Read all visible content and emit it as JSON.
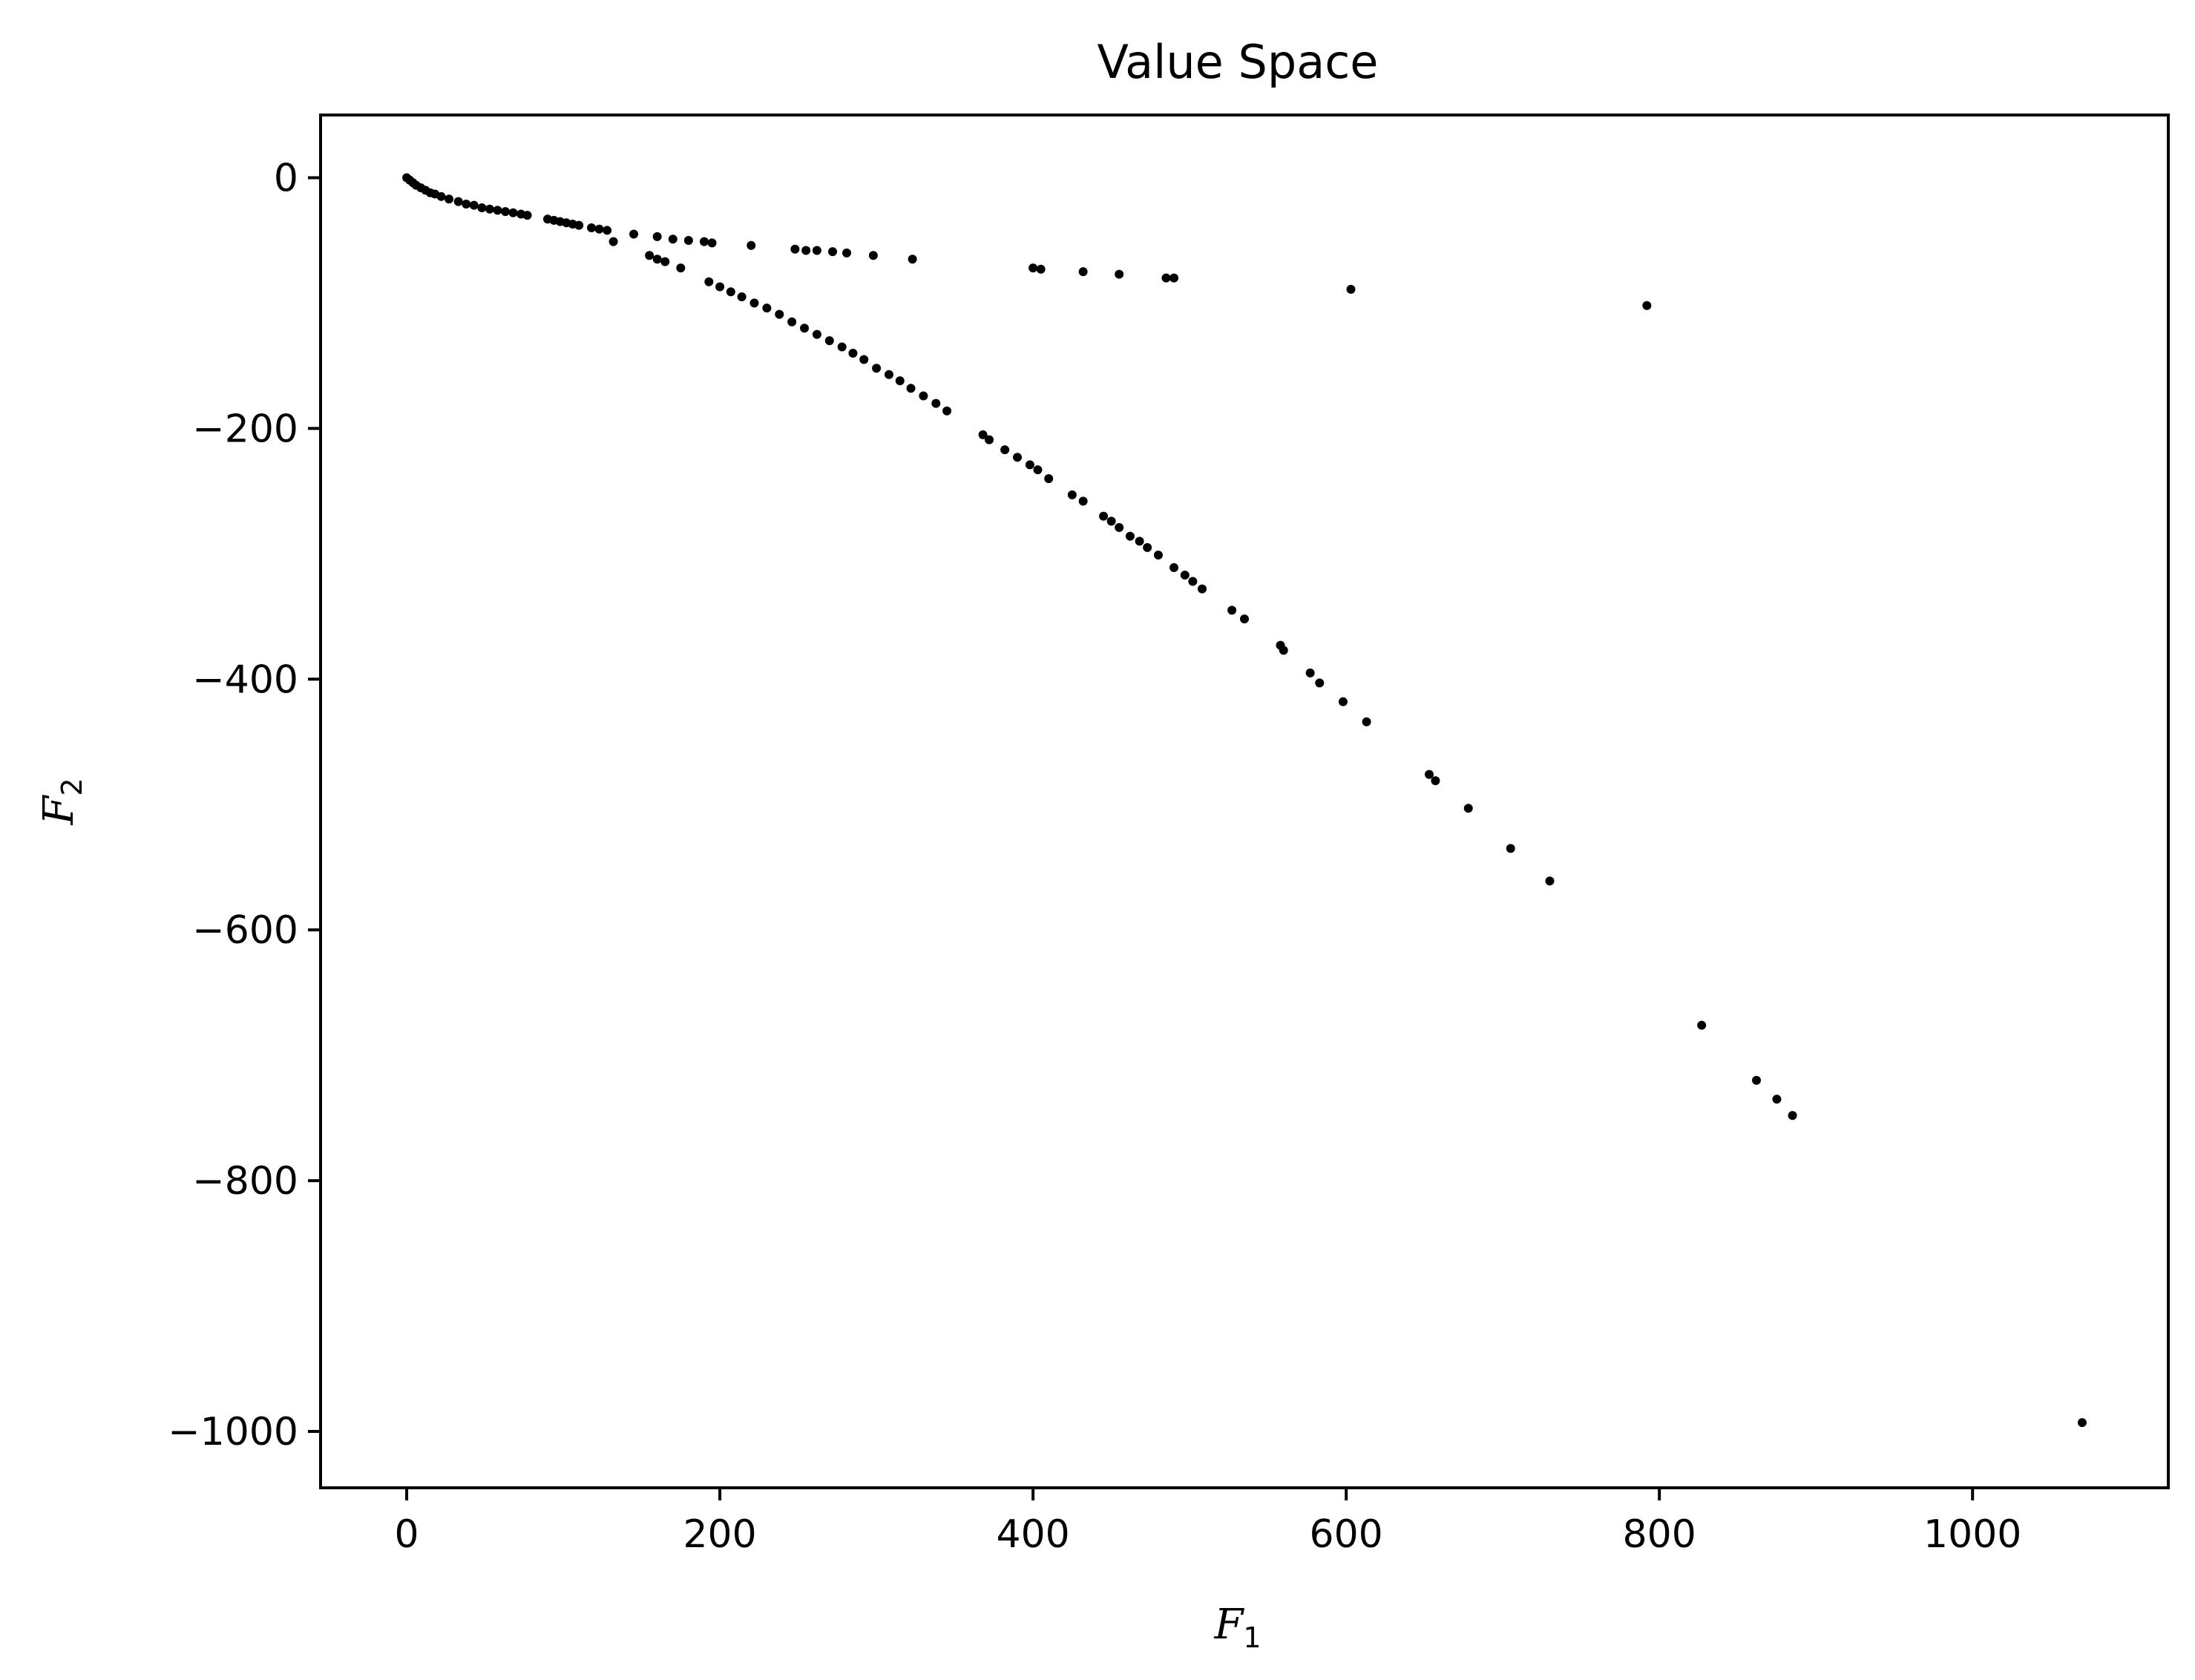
{
  "chart_data": {
    "type": "scatter",
    "title": "Value Space",
    "xlabel": {
      "main": "F",
      "sub": "1"
    },
    "ylabel": {
      "main": "F",
      "sub": "2"
    },
    "xlim": [
      -55,
      1125
    ],
    "ylim": [
      -1045,
      50
    ],
    "xticks": [
      0,
      200,
      400,
      600,
      800,
      1000
    ],
    "yticks": [
      0,
      -200,
      -400,
      -600,
      -800,
      -1000
    ],
    "ytick_labels": [
      "0",
      "−200",
      "−400",
      "−600",
      "−800",
      "−1000"
    ],
    "grid": false,
    "marker_color": "#000000",
    "series": [
      {
        "x": [
          0,
          2,
          4,
          6,
          9,
          12,
          15,
          18,
          22,
          27,
          33,
          38,
          43,
          48,
          53,
          58,
          63,
          68,
          73,
          77,
          90,
          94,
          98,
          102,
          106,
          110,
          118,
          123,
          128,
          132,
          145,
          160,
          170,
          180,
          190,
          195,
          220,
          248,
          255,
          262,
          272,
          281,
          298,
          323,
          400,
          405,
          432,
          455,
          485,
          490,
          603,
          792
        ],
        "y": [
          0,
          -2,
          -4,
          -6,
          -8,
          -10,
          -12,
          -13,
          -15,
          -17,
          -19,
          -21,
          -22,
          -24,
          -25,
          -26,
          -27,
          -28,
          -29,
          -30,
          -33,
          -34,
          -35,
          -36,
          -37,
          -38,
          -40,
          -41,
          -42,
          -51,
          -45,
          -47,
          -49,
          -50,
          -51,
          -52,
          -54,
          -57,
          -58,
          -58,
          -59,
          -60,
          -62,
          -65,
          -72,
          -73,
          -75,
          -77,
          -80,
          -80,
          -89,
          -102
        ]
      },
      {
        "x": [
          155,
          160,
          165,
          175,
          193,
          200,
          207,
          214,
          222,
          230,
          238,
          246,
          254,
          262,
          270,
          278,
          285,
          292,
          300,
          308,
          315,
          322,
          330,
          338,
          345,
          368,
          372,
          382,
          390,
          398,
          403,
          410,
          425,
          432,
          445,
          450,
          455,
          462,
          468,
          473,
          480,
          490,
          497,
          502,
          508,
          527,
          535,
          558,
          560,
          577,
          583,
          598,
          613,
          653,
          657,
          678,
          705,
          730,
          827,
          862,
          875,
          885,
          1070
        ],
        "y": [
          -62,
          -65,
          -67,
          -72,
          -83,
          -87,
          -91,
          -95,
          -100,
          -104,
          -109,
          -115,
          -120,
          -125,
          -130,
          -135,
          -140,
          -145,
          -152,
          -157,
          -162,
          -168,
          -174,
          -180,
          -186,
          -205,
          -209,
          -217,
          -223,
          -229,
          -233,
          -240,
          -253,
          -258,
          -270,
          -274,
          -279,
          -286,
          -290,
          -295,
          -301,
          -311,
          -317,
          -322,
          -328,
          -345,
          -352,
          -373,
          -377,
          -395,
          -403,
          -418,
          -434,
          -476,
          -481,
          -503,
          -535,
          -561,
          -676,
          -720,
          -735,
          -748,
          -993
        ]
      }
    ]
  }
}
